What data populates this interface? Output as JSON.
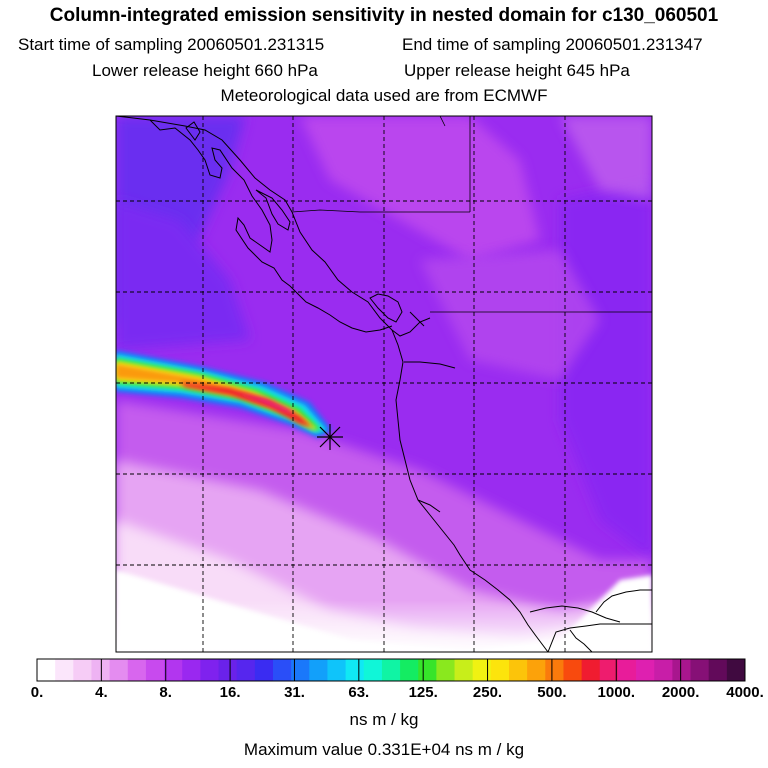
{
  "header": {
    "title": "Column-integrated emission sensitivity in nested domain for c130_060501",
    "start_time": "Start time of sampling 20060501.231315",
    "end_time": "End time of sampling 20060501.231347",
    "lower_height": "Lower release height  660 hPa",
    "upper_height": "Upper release height  645 hPa",
    "met_data": "Meteorological data used are from ECMWF"
  },
  "colorbar": {
    "labels": [
      "0.",
      "4.",
      "8.",
      "16.",
      "31.",
      "63.",
      "125.",
      "250.",
      "500.",
      "1000.",
      "2000.",
      "4000."
    ],
    "colors": [
      "#ffffff",
      "#fbe6fb",
      "#f6ccf6",
      "#eeb3f3",
      "#e48cf0",
      "#d866ee",
      "#c84aee",
      "#b236ef",
      "#9a28f0",
      "#7f22ee",
      "#6a22ea",
      "#5626ee",
      "#3a2cf2",
      "#2a4ef8",
      "#1a78fa",
      "#12a0fa",
      "#0fc4fa",
      "#10e8f4",
      "#10f6d8",
      "#10f4a4",
      "#14ec62",
      "#36e42a",
      "#8ae81e",
      "#c8ee1a",
      "#f0f212",
      "#fce40c",
      "#fcc40a",
      "#fca20a",
      "#fa7a0c",
      "#f84a0e",
      "#f01c30",
      "#ee1c6e",
      "#e81c9a",
      "#de20b0",
      "#c81ea8",
      "#a8168e",
      "#861076",
      "#620a5a",
      "#400a40"
    ],
    "units": "ns m / kg",
    "max_value": "Maximum value  0.331E+04 ns m / kg"
  },
  "map": {
    "release_marker": "release-point-star",
    "grid": "dashed"
  }
}
